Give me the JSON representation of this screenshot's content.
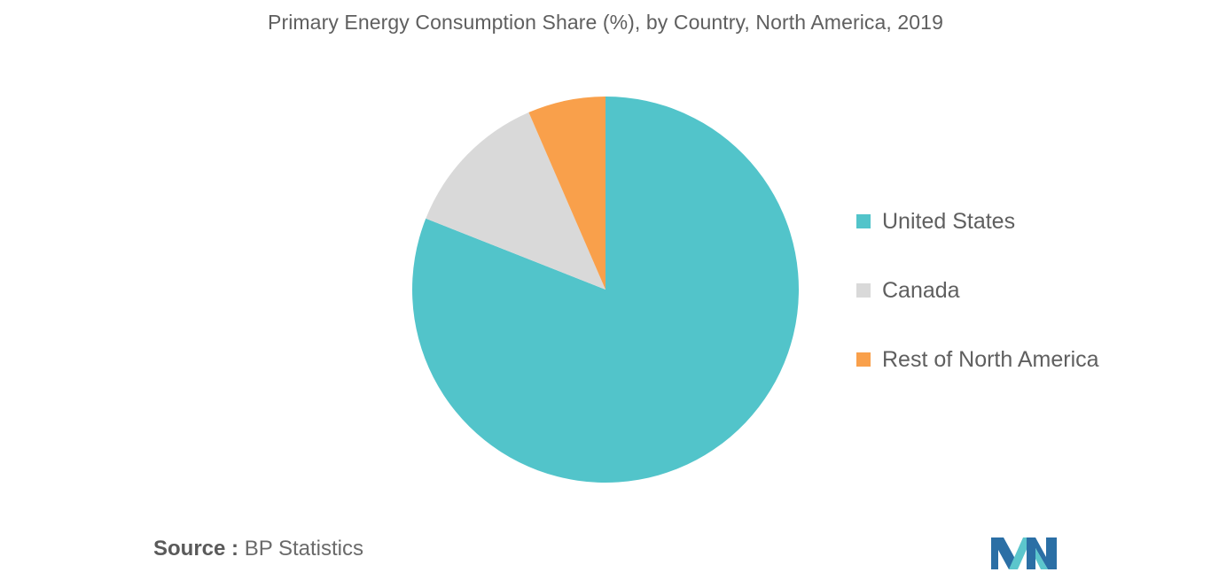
{
  "chart_data": {
    "type": "pie",
    "title": "Primary Energy Consumption Share (%), by Country, North America, 2019",
    "categories": [
      "United States",
      "Canada",
      "Rest of North America"
    ],
    "values": [
      81.0,
      12.5,
      6.5
    ],
    "colors": [
      "#52c4ca",
      "#d9d9d9",
      "#f9a04b"
    ],
    "legend_position": "right"
  },
  "source": {
    "label": "Source :",
    "value": "BP Statistics"
  },
  "logo": {
    "icon": "mordor-intelligence-logo-icon",
    "colors": [
      "#2b6fa5",
      "#5cc6cc"
    ]
  }
}
